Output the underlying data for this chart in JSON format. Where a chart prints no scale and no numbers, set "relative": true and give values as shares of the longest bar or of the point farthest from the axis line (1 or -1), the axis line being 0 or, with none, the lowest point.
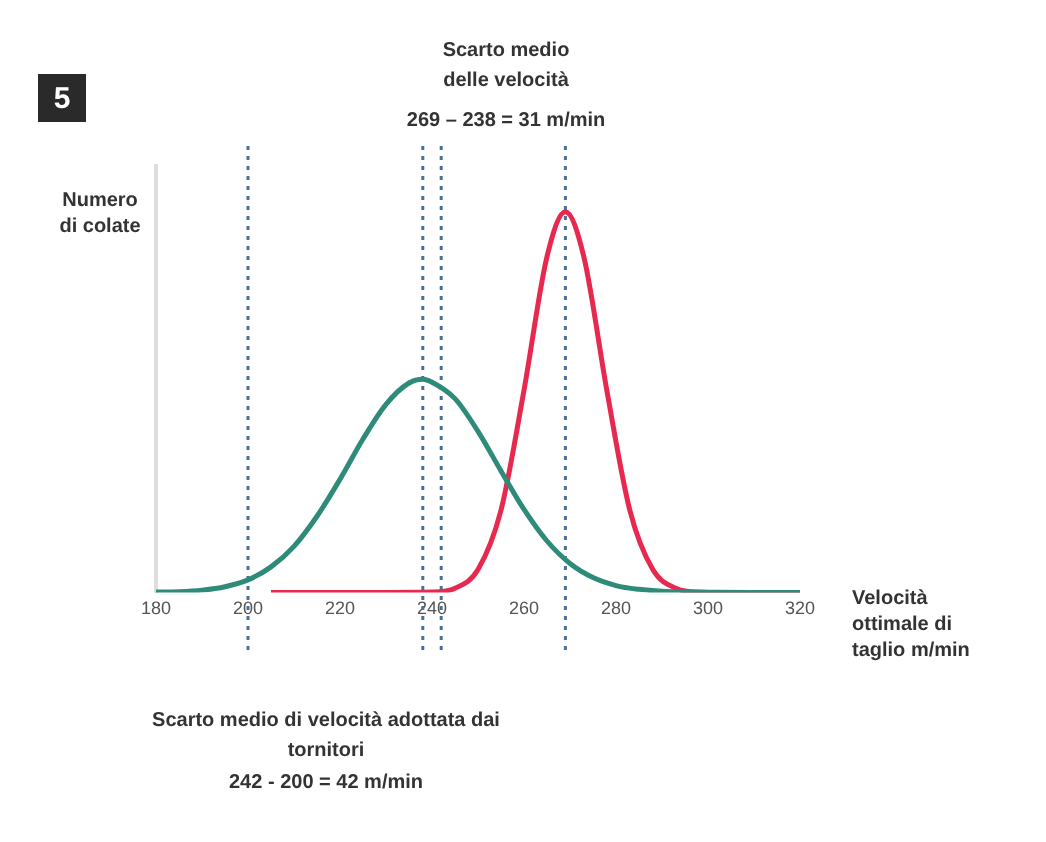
{
  "chart_data": {
    "type": "line",
    "relative": true,
    "xlabel": "Velocità ottimale di taglio m/min",
    "ylabel": "Numero di colate",
    "xlim": [
      180,
      320
    ],
    "xticks": [
      180,
      200,
      220,
      240,
      260,
      280,
      300,
      320
    ],
    "series": [
      {
        "color": "#2e8b7a",
        "x": [
          180,
          185,
          190,
          195,
          200,
          205,
          210,
          215,
          220,
          225,
          230,
          235,
          238,
          240,
          245,
          250,
          255,
          260,
          265,
          270,
          275,
          280,
          285,
          290,
          300,
          310,
          320
        ],
        "values": [
          0.001,
          0.002,
          0.006,
          0.015,
          0.033,
          0.067,
          0.121,
          0.2,
          0.297,
          0.403,
          0.494,
          0.55,
          0.56,
          0.552,
          0.509,
          0.423,
          0.319,
          0.218,
          0.135,
          0.076,
          0.039,
          0.018,
          0.008,
          0.003,
          0,
          0,
          0
        ]
      },
      {
        "color": "#e8294f",
        "x": [
          205,
          220,
          230,
          240,
          245,
          250,
          255,
          260,
          265,
          269,
          273,
          278,
          283,
          288,
          293,
          298,
          310,
          320
        ],
        "values": [
          0,
          0,
          0,
          0.001,
          0.011,
          0.06,
          0.216,
          0.531,
          0.882,
          1,
          0.882,
          0.531,
          0.216,
          0.06,
          0.011,
          0.001,
          0,
          0
        ]
      }
    ],
    "ref_lines": [
      {
        "axis": "x",
        "value": 200,
        "color": "#4a6f9a",
        "line_style": "dotted"
      },
      {
        "axis": "x",
        "value": 238,
        "color": "#4a6f9a",
        "line_style": "dotted"
      },
      {
        "axis": "x",
        "value": 242,
        "color": "#4a6f9a",
        "line_style": "dotted"
      },
      {
        "axis": "x",
        "value": 269,
        "color": "#4a6f9a",
        "line_style": "dotted"
      }
    ],
    "annotations": [
      "5",
      "Scarto medio delle velocità",
      "269 – 238 = 31 m/min",
      "Scarto medio di velocità adottata dai tornitori",
      "242 - 200 = 42 m/min"
    ],
    "line_style": "solid",
    "marker": "none",
    "grid": false,
    "legend": false
  }
}
